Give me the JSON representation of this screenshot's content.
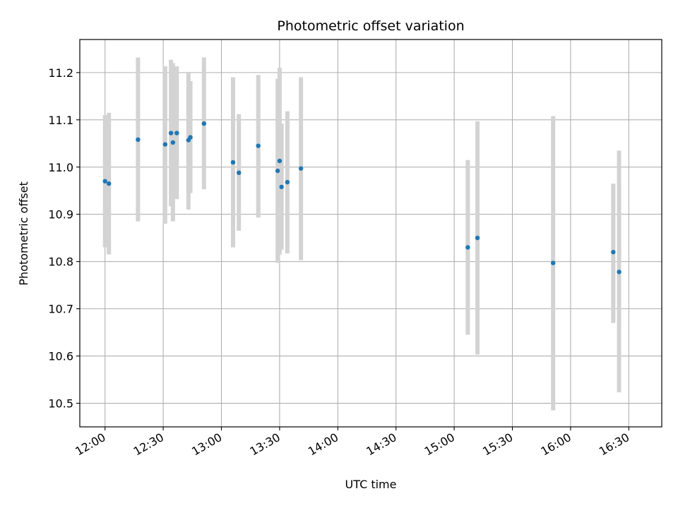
{
  "chart_data": {
    "type": "scatter",
    "title": "Photometric offset variation",
    "xlabel": "UTC time",
    "ylabel": "Photometric offset",
    "xlim": [
      "11:47",
      "16:47"
    ],
    "ylim": [
      10.45,
      11.27
    ],
    "x_ticks": [
      "12:00",
      "12:30",
      "13:00",
      "13:30",
      "14:00",
      "14:30",
      "15:00",
      "15:30",
      "16:00",
      "16:30"
    ],
    "y_ticks": [
      "10.5",
      "10.6",
      "10.7",
      "10.8",
      "10.9",
      "11.0",
      "11.1",
      "11.2"
    ],
    "grid": true,
    "colors": {
      "marker": "#1f77b4",
      "errorbar": "#d3d3d3",
      "grid": "#b0b0b0"
    },
    "series": [
      {
        "points": [
          {
            "time": "12:00",
            "y": 10.97,
            "lo": 10.83,
            "hi": 11.11
          },
          {
            "time": "12:02",
            "y": 10.965,
            "lo": 10.815,
            "hi": 11.115
          },
          {
            "time": "12:17",
            "y": 11.058,
            "lo": 10.885,
            "hi": 11.232
          },
          {
            "time": "12:31",
            "y": 11.048,
            "lo": 10.88,
            "hi": 11.213
          },
          {
            "time": "12:34",
            "y": 11.072,
            "lo": 10.917,
            "hi": 11.227
          },
          {
            "time": "12:35",
            "y": 11.052,
            "lo": 10.885,
            "hi": 11.22
          },
          {
            "time": "12:37",
            "y": 11.072,
            "lo": 10.932,
            "hi": 11.213
          },
          {
            "time": "12:43",
            "y": 11.057,
            "lo": 10.91,
            "hi": 11.2
          },
          {
            "time": "12:44",
            "y": 11.063,
            "lo": 10.945,
            "hi": 11.182
          },
          {
            "time": "12:51",
            "y": 11.092,
            "lo": 10.953,
            "hi": 11.232
          },
          {
            "time": "13:06",
            "y": 11.01,
            "lo": 10.83,
            "hi": 11.19
          },
          {
            "time": "13:09",
            "y": 10.988,
            "lo": 10.865,
            "hi": 11.112
          },
          {
            "time": "13:19",
            "y": 11.045,
            "lo": 10.893,
            "hi": 11.195
          },
          {
            "time": "13:29",
            "y": 10.992,
            "lo": 10.797,
            "hi": 11.187
          },
          {
            "time": "13:30",
            "y": 11.013,
            "lo": 10.815,
            "hi": 11.21
          },
          {
            "time": "13:31",
            "y": 10.958,
            "lo": 10.825,
            "hi": 11.092
          },
          {
            "time": "13:34",
            "y": 10.968,
            "lo": 10.817,
            "hi": 11.118
          },
          {
            "time": "13:41",
            "y": 10.997,
            "lo": 10.803,
            "hi": 11.19
          },
          {
            "time": "15:07",
            "y": 10.83,
            "lo": 10.645,
            "hi": 11.015
          },
          {
            "time": "15:12",
            "y": 10.85,
            "lo": 10.603,
            "hi": 11.097
          },
          {
            "time": "15:51",
            "y": 10.797,
            "lo": 10.485,
            "hi": 11.108
          },
          {
            "time": "16:22",
            "y": 10.82,
            "lo": 10.67,
            "hi": 10.965
          },
          {
            "time": "16:25",
            "y": 10.778,
            "lo": 10.523,
            "hi": 11.035
          }
        ]
      }
    ]
  }
}
